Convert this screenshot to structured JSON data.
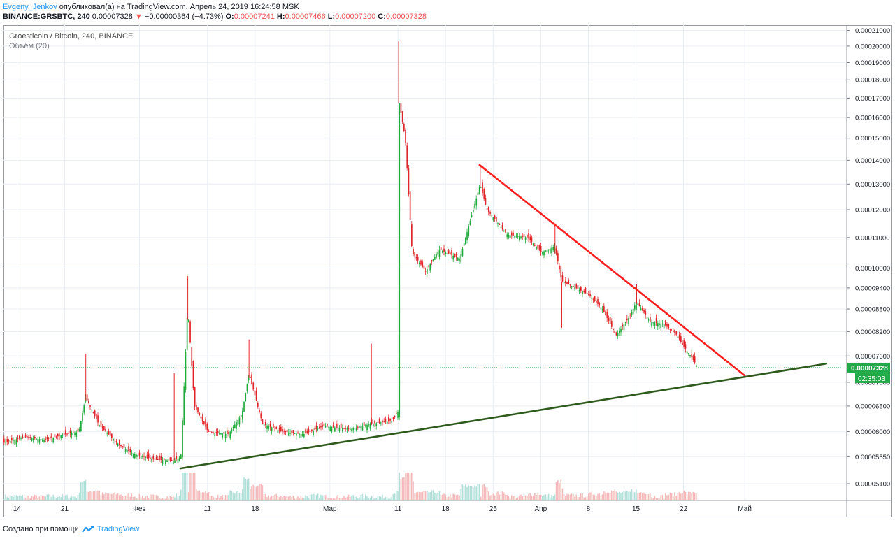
{
  "header": {
    "author": "Evgeny_Jenkov",
    "published": "опубликовал(а) на TradingView.com, Апрель 24, 2019 16:24:58 MSK",
    "symbol": "BINANCE:GRSBTC, 240",
    "last": "0.00007328",
    "change": "−0.00000364 (−4.73%)",
    "o_label": "O:",
    "o": "0.00007241",
    "h_label": "H:",
    "h": "0.00007466",
    "l_label": "L:",
    "l": "0.00007200",
    "c_label": "C:",
    "c": "0.00007328"
  },
  "legend": {
    "title": "Groestlcoin / Bitcoin, 240, BINANCE",
    "volume": "Объём (20)"
  },
  "footer": {
    "created": "Создано при помощи",
    "brand": "TradingView"
  },
  "colors": {
    "up": "#26a69a",
    "up_candle": "#22ab3c",
    "down": "#e0262b",
    "trend_red": "#ff1f1f",
    "trend_green": "#2e5a1c",
    "price_badge": "#23a84a",
    "grid": "#e9eef4"
  },
  "chart_data": {
    "type": "candlestick",
    "scale": "log",
    "price_axis_labels": [
      "0.00021000",
      "0.00020000",
      "0.00019000",
      "0.00018000",
      "0.00017000",
      "0.00016000",
      "0.00015000",
      "0.00014000",
      "0.00013000",
      "0.00012000",
      "0.00011000",
      "0.00010000",
      "0.00009400",
      "0.00008800",
      "0.00008200",
      "0.00007600",
      "0.00007000",
      "0.00006500",
      "0.00006000",
      "0.00005550",
      "0.00005100"
    ],
    "price_axis_values": [
      0.00021,
      0.0002,
      0.00019,
      0.00018,
      0.00017,
      0.00016,
      0.00015,
      0.00014,
      0.00013,
      0.00012,
      0.00011,
      0.0001,
      9.4e-05,
      8.8e-05,
      8.2e-05,
      7.6e-05,
      7e-05,
      6.5e-05,
      6e-05,
      5.55e-05,
      5.1e-05
    ],
    "time_axis_labels": [
      "14",
      "21",
      "Фев",
      "11",
      "18",
      "Мар",
      "11",
      "18",
      "25",
      "Апр",
      "8",
      "15",
      "22",
      "Май"
    ],
    "last_price_label": "0.00007328",
    "countdown_label": "02:35:03",
    "close_path": [
      [
        "2019-01-12",
        5.8e-05
      ],
      [
        "2019-01-15",
        5.9e-05
      ],
      [
        "2019-01-18",
        5.85e-05
      ],
      [
        "2019-01-21",
        5.95e-05
      ],
      [
        "2019-01-23",
        6e-05
      ],
      [
        "2019-01-24",
        6.68e-05
      ],
      [
        "2019-01-26",
        6.12e-05
      ],
      [
        "2019-01-29",
        5.75e-05
      ],
      [
        "2019-01-31",
        5.6e-05
      ],
      [
        "2019-02-03",
        5.5e-05
      ],
      [
        "2019-02-06",
        5.48e-05
      ],
      [
        "2019-02-07",
        5.55e-05
      ],
      [
        "2019-02-08",
        8.9e-05
      ],
      [
        "2019-02-09",
        6.5e-05
      ],
      [
        "2019-02-11",
        6e-05
      ],
      [
        "2019-02-14",
        5.95e-05
      ],
      [
        "2019-02-16",
        6.35e-05
      ],
      [
        "2019-02-17",
        7.2e-05
      ],
      [
        "2019-02-19",
        6.15e-05
      ],
      [
        "2019-02-22",
        6e-05
      ],
      [
        "2019-02-25",
        5.95e-05
      ],
      [
        "2019-02-28",
        6.1e-05
      ],
      [
        "2019-03-04",
        6.05e-05
      ],
      [
        "2019-03-07",
        6.15e-05
      ],
      [
        "2019-03-10",
        6.2e-05
      ],
      [
        "2019-03-11",
        6.4e-05
      ],
      [
        "2019-03-11",
        0.00017
      ],
      [
        "2019-03-12",
        0.00015
      ],
      [
        "2019-03-13",
        0.000105
      ],
      [
        "2019-03-15",
        9.9e-05
      ],
      [
        "2019-03-17",
        0.000106
      ],
      [
        "2019-03-20",
        0.000103
      ],
      [
        "2019-03-22",
        0.00012
      ],
      [
        "2019-03-23",
        0.00013
      ],
      [
        "2019-03-24",
        0.00012
      ],
      [
        "2019-03-27",
        0.000111
      ],
      [
        "2019-03-30",
        0.00011
      ],
      [
        "2019-04-01",
        0.000105
      ],
      [
        "2019-04-03",
        0.000107
      ],
      [
        "2019-04-04",
        9.6e-05
      ],
      [
        "2019-04-06",
        9.4e-05
      ],
      [
        "2019-04-08",
        9.2e-05
      ],
      [
        "2019-04-10",
        8.8e-05
      ],
      [
        "2019-04-12",
        8.1e-05
      ],
      [
        "2019-04-14",
        8.6e-05
      ],
      [
        "2019-04-15",
        9e-05
      ],
      [
        "2019-04-17",
        8.45e-05
      ],
      [
        "2019-04-19",
        8.4e-05
      ],
      [
        "2019-04-21",
        8.1e-05
      ],
      [
        "2019-04-22",
        7.8e-05
      ],
      [
        "2019-04-23",
        7.6e-05
      ],
      [
        "2019-04-24",
        7.33e-05
      ]
    ],
    "spikes": [
      [
        "2019-01-24",
        7.65e-05
      ],
      [
        "2019-02-08",
        9.75e-05
      ],
      [
        "2019-02-06",
        7.2e-05
      ],
      [
        "2019-02-17",
        8e-05
      ],
      [
        "2019-03-07",
        7.9e-05
      ],
      [
        "2019-03-11",
        0.000203
      ],
      [
        "2019-03-23",
        0.000138
      ],
      [
        "2019-04-03",
        0.000115
      ],
      [
        "2019-04-04",
        8.3e-05
      ],
      [
        "2019-04-15",
        9.5e-05
      ]
    ],
    "trendlines": [
      {
        "name": "resistance",
        "from": [
          "2019-03-23",
          0.000138
        ],
        "to": [
          "2019-05-01",
          7.15e-05
        ]
      },
      {
        "name": "support",
        "from": [
          "2019-02-07",
          5.35e-05
        ],
        "to": [
          "2019-05-13",
          7.42e-05
        ]
      }
    ]
  }
}
